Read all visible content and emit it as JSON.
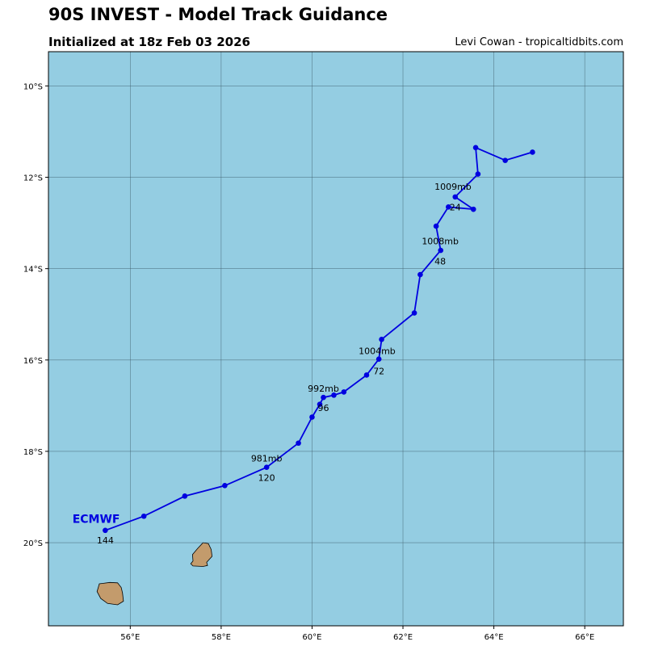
{
  "header": {
    "title": "90S INVEST - Model Track Guidance",
    "subtitle": "Initialized at 18z Feb 03 2026",
    "credit": "Levi Cowan - tropicaltidbits.com"
  },
  "colors": {
    "ocean": "#94cde2",
    "land": "#c39b6c",
    "track": "#0000e0",
    "grid": "#3c5a66"
  },
  "axes": {
    "lon_range": [
      54.2,
      66.85
    ],
    "lat_range": [
      -21.82,
      -9.25
    ],
    "lon_ticks": [
      {
        "value": 56,
        "label": "56°E"
      },
      {
        "value": 58,
        "label": "58°E"
      },
      {
        "value": 60,
        "label": "60°E"
      },
      {
        "value": 62,
        "label": "62°E"
      },
      {
        "value": 64,
        "label": "64°E"
      },
      {
        "value": 66,
        "label": "66°E"
      }
    ],
    "lat_ticks": [
      {
        "value": -10,
        "label": "10°S"
      },
      {
        "value": -12,
        "label": "12°S"
      },
      {
        "value": -14,
        "label": "14°S"
      },
      {
        "value": -16,
        "label": "16°S"
      },
      {
        "value": -18,
        "label": "18°S"
      },
      {
        "value": -20,
        "label": "20°S"
      }
    ]
  },
  "chart_data": {
    "type": "scatter",
    "title": "90S INVEST - Model Track Guidance",
    "series": [
      {
        "name": "ECMWF",
        "points": [
          {
            "lon": 64.85,
            "lat": -11.45
          },
          {
            "lon": 64.25,
            "lat": -11.63
          },
          {
            "lon": 63.6,
            "lat": -11.35
          },
          {
            "lon": 63.65,
            "lat": -11.93
          },
          {
            "lon": 63.15,
            "lat": -12.43
          },
          {
            "lon": 63.55,
            "lat": -12.7
          },
          {
            "lon": 63.0,
            "lat": -12.65
          },
          {
            "lon": 62.73,
            "lat": -13.07
          },
          {
            "lon": 62.83,
            "lat": -13.6
          },
          {
            "lon": 62.38,
            "lat": -14.13
          },
          {
            "lon": 62.25,
            "lat": -14.97
          },
          {
            "lon": 61.53,
            "lat": -15.55
          },
          {
            "lon": 61.47,
            "lat": -15.98
          },
          {
            "lon": 61.2,
            "lat": -16.33
          },
          {
            "lon": 60.7,
            "lat": -16.7
          },
          {
            "lon": 60.48,
            "lat": -16.77
          },
          {
            "lon": 60.25,
            "lat": -16.82
          },
          {
            "lon": 60.17,
            "lat": -16.97
          },
          {
            "lon": 60.0,
            "lat": -17.25
          },
          {
            "lon": 59.7,
            "lat": -17.82
          },
          {
            "lon": 59.0,
            "lat": -18.35
          },
          {
            "lon": 58.08,
            "lat": -18.75
          },
          {
            "lon": 57.2,
            "lat": -18.98
          },
          {
            "lon": 56.3,
            "lat": -19.42
          },
          {
            "lon": 55.45,
            "lat": -19.73
          }
        ]
      }
    ],
    "annotations": [
      {
        "text": "1009mb",
        "lon": 63.1,
        "lat": -12.2
      },
      {
        "text": "24",
        "lon": 63.15,
        "lat": -12.65
      },
      {
        "text": "1008mb",
        "lon": 62.82,
        "lat": -13.4
      },
      {
        "text": "48",
        "lon": 62.82,
        "lat": -13.84
      },
      {
        "text": "1004mb",
        "lon": 61.43,
        "lat": -15.8
      },
      {
        "text": "72",
        "lon": 61.47,
        "lat": -16.24
      },
      {
        "text": "992mb",
        "lon": 60.25,
        "lat": -16.62
      },
      {
        "text": "96",
        "lon": 60.25,
        "lat": -17.05
      },
      {
        "text": "981mb",
        "lon": 59.0,
        "lat": -18.15
      },
      {
        "text": "120",
        "lon": 59.0,
        "lat": -18.58
      },
      {
        "text": "144",
        "lon": 55.45,
        "lat": -19.95
      }
    ],
    "model_label": {
      "text": "ECMWF",
      "lon": 55.25,
      "lat": -19.48
    },
    "xlabel": "",
    "ylabel": ""
  },
  "land": [
    {
      "name": "mauritius",
      "outline": [
        [
          57.6,
          -20.0
        ],
        [
          57.72,
          -20.02
        ],
        [
          57.78,
          -20.15
        ],
        [
          57.8,
          -20.3
        ],
        [
          57.68,
          -20.43
        ],
        [
          57.7,
          -20.5
        ],
        [
          57.6,
          -20.52
        ],
        [
          57.38,
          -20.51
        ],
        [
          57.33,
          -20.46
        ],
        [
          57.38,
          -20.4
        ],
        [
          57.37,
          -20.26
        ],
        [
          57.48,
          -20.13
        ]
      ]
    },
    {
      "name": "reunion",
      "outline": [
        [
          55.55,
          -20.87
        ],
        [
          55.72,
          -20.88
        ],
        [
          55.8,
          -20.98
        ],
        [
          55.83,
          -21.1
        ],
        [
          55.85,
          -21.28
        ],
        [
          55.72,
          -21.36
        ],
        [
          55.5,
          -21.33
        ],
        [
          55.35,
          -21.22
        ],
        [
          55.27,
          -21.07
        ],
        [
          55.32,
          -20.9
        ]
      ]
    }
  ]
}
